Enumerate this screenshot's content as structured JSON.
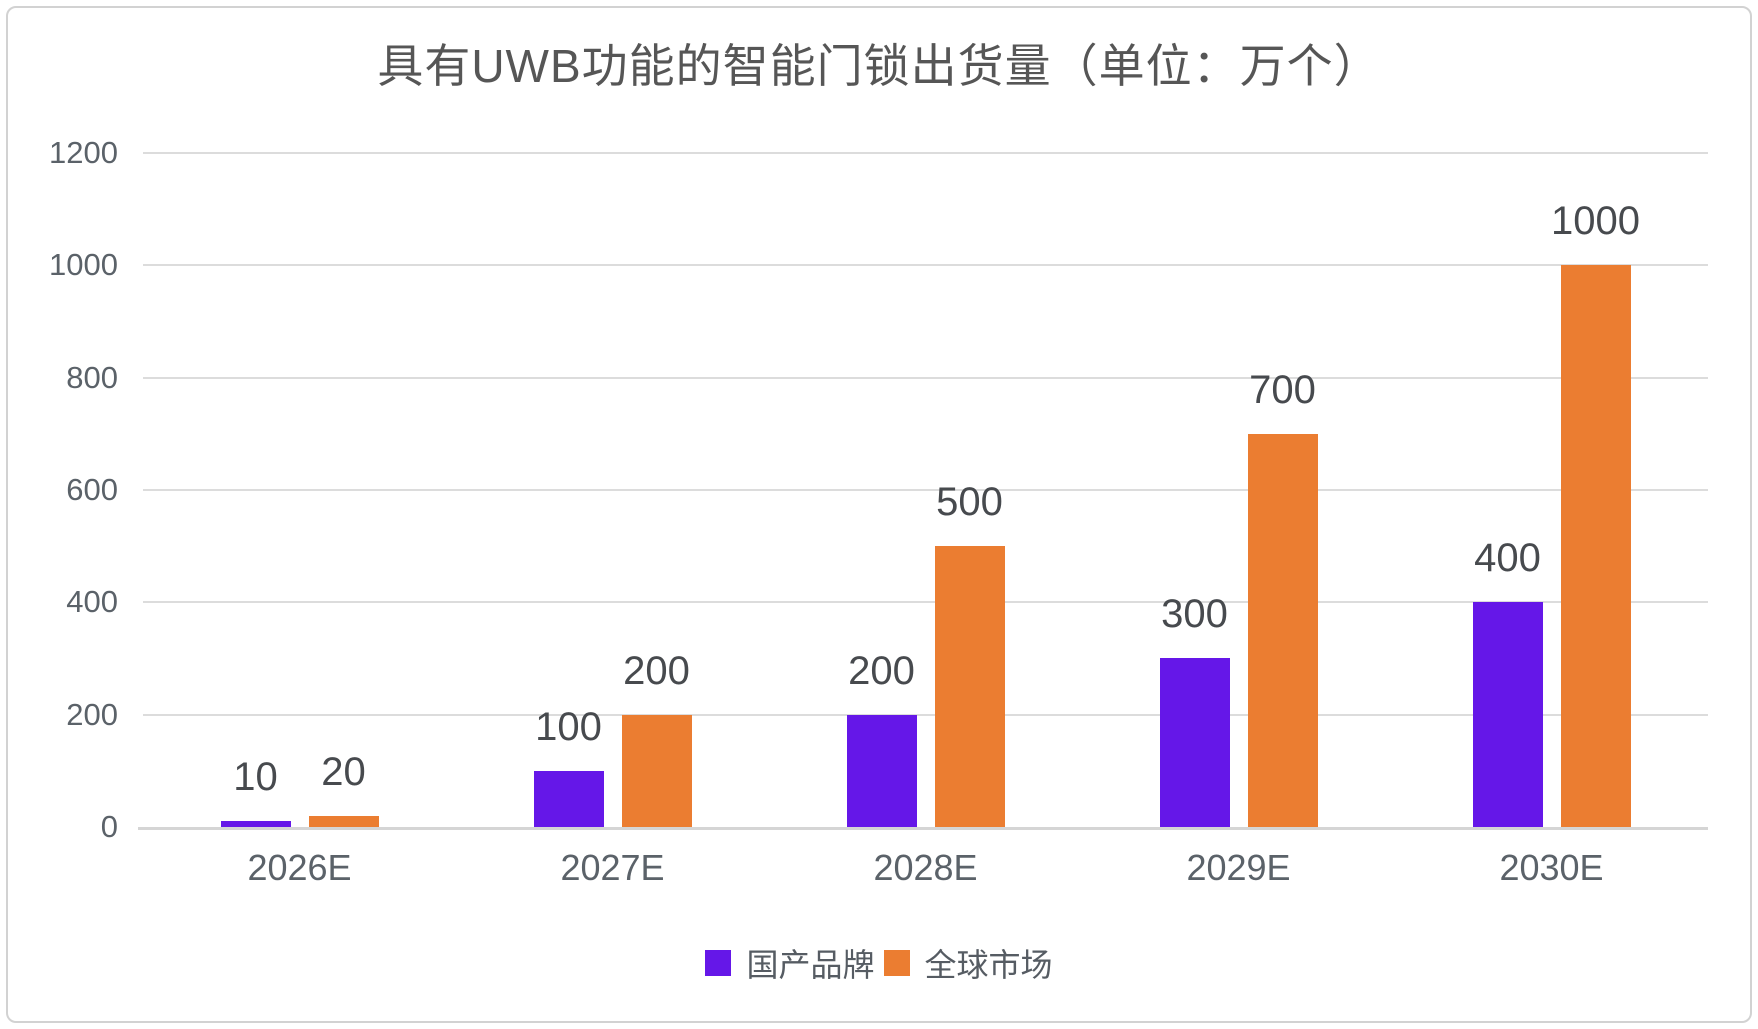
{
  "title": "具有UWB功能的智能门锁出货量（单位：万个）",
  "colors": {
    "series_domestic": "#6517E8",
    "series_global": "#EB7D31",
    "gridline": "#dcdcdc",
    "axis_line": "#d5d5d5",
    "axis_text": "#5b6269",
    "data_label_text": "#474a4e",
    "title_text": "#565656",
    "card_border": "#d2d2d2"
  },
  "chart_data": {
    "type": "bar",
    "title": "具有UWB功能的智能门锁出货量（单位：万个）",
    "categories": [
      "2026E",
      "2027E",
      "2028E",
      "2029E",
      "2030E"
    ],
    "series": [
      {
        "name": "国产品牌",
        "color": "#6517E8",
        "values": [
          10,
          100,
          200,
          300,
          400
        ]
      },
      {
        "name": "全球市场",
        "color": "#EB7D31",
        "values": [
          20,
          200,
          500,
          700,
          1000
        ]
      }
    ],
    "data_labels": [
      [
        "10",
        "100",
        "200",
        "300",
        "400"
      ],
      [
        "20",
        "200",
        "500",
        "700",
        "1000"
      ]
    ],
    "xlabel": "",
    "ylabel": "",
    "ylim": [
      0,
      1200
    ],
    "yticks": [
      0,
      200,
      400,
      600,
      800,
      1000,
      1200
    ],
    "grid": "horizontal",
    "legend_position": "bottom",
    "data_label_position": "outside-end"
  }
}
